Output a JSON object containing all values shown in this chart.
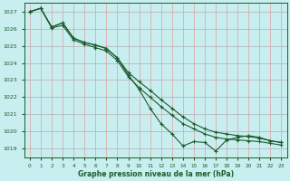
{
  "title": "Graphe pression niveau de la mer (hPa)",
  "bg_color": "#c8eef0",
  "grid_color_h": "#b0b0b0",
  "grid_color_v": "#e0a0a0",
  "line_color": "#1a5c2a",
  "text_color": "#1a5c2a",
  "xlim": [
    -0.5,
    23.5
  ],
  "ylim": [
    1018.5,
    1027.5
  ],
  "yticks": [
    1019,
    1020,
    1021,
    1022,
    1023,
    1024,
    1025,
    1026,
    1027
  ],
  "xticks": [
    0,
    1,
    2,
    3,
    4,
    5,
    6,
    7,
    8,
    9,
    10,
    11,
    12,
    13,
    14,
    15,
    16,
    17,
    18,
    19,
    20,
    21,
    22,
    23
  ],
  "line1_x": [
    0,
    1,
    2,
    3,
    4,
    5,
    6,
    7,
    8,
    9,
    10,
    11,
    12,
    13,
    14,
    15,
    16,
    17,
    18,
    19,
    20,
    21,
    22,
    23
  ],
  "line1_y": [
    1027.0,
    1027.2,
    1026.1,
    1026.35,
    1025.45,
    1025.2,
    1025.05,
    1024.85,
    1024.3,
    1023.3,
    1022.45,
    1021.35,
    1020.45,
    1019.85,
    1019.15,
    1019.4,
    1019.35,
    1018.85,
    1019.5,
    1019.65,
    1019.75,
    1019.65,
    1019.45,
    1019.35
  ],
  "line2_x": [
    0,
    1,
    2,
    3,
    4,
    5,
    6,
    7,
    8,
    9,
    10,
    11,
    12,
    13,
    14,
    15,
    16,
    17,
    18,
    19,
    20,
    21,
    22,
    23
  ],
  "line2_y": [
    1027.0,
    1027.2,
    1026.1,
    1026.35,
    1025.45,
    1025.2,
    1025.05,
    1024.85,
    1024.3,
    1023.45,
    1022.9,
    1022.4,
    1021.85,
    1021.35,
    1020.85,
    1020.45,
    1020.15,
    1019.95,
    1019.85,
    1019.75,
    1019.7,
    1019.6,
    1019.45,
    1019.35
  ],
  "line3_x": [
    0,
    1,
    2,
    3,
    4,
    5,
    6,
    7,
    8,
    9,
    10,
    11,
    12,
    13,
    14,
    15,
    16,
    17,
    18,
    19,
    20,
    21,
    22,
    23
  ],
  "line3_y": [
    1027.0,
    1027.2,
    1026.05,
    1026.2,
    1025.35,
    1025.1,
    1024.9,
    1024.7,
    1024.15,
    1023.2,
    1022.55,
    1022.0,
    1021.45,
    1020.95,
    1020.45,
    1020.15,
    1019.85,
    1019.65,
    1019.55,
    1019.5,
    1019.45,
    1019.4,
    1019.3,
    1019.2
  ]
}
